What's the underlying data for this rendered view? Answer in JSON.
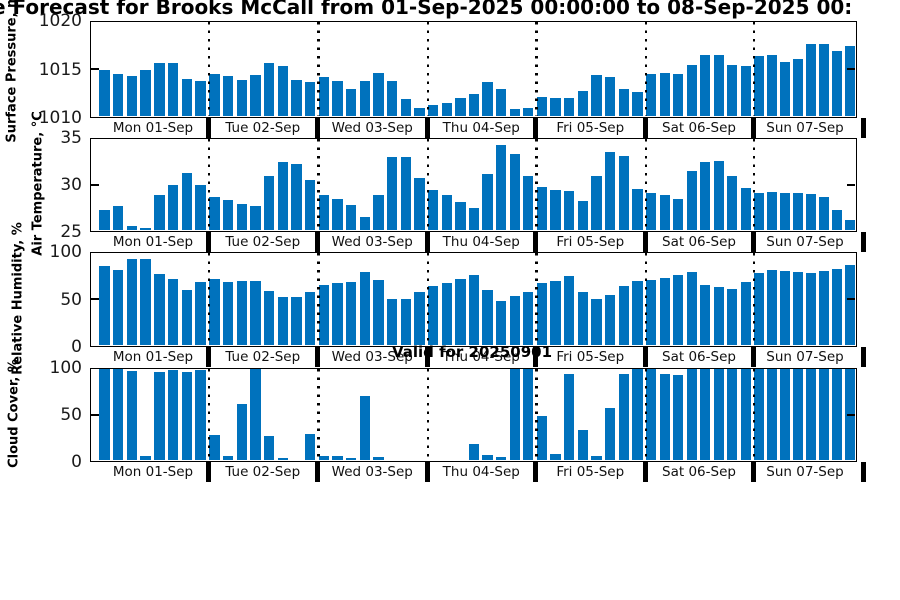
{
  "title": "e Forecast for Brooks McCall from 01-Sep-2025 00:00:00 to 08-Sep-2025 00:",
  "annotation": "Valid for 20250901",
  "bar_color": "#0072BD",
  "day_labels": [
    "Mon 01-Sep",
    "Tue 02-Sep",
    "Wed 03-Sep",
    "Thu 04-Sep",
    "Fri 05-Sep",
    "Sat 06-Sep",
    "Sun 07-Sep"
  ],
  "chart_data": [
    {
      "type": "bar",
      "title": "",
      "ylabel": "Surface Pressure, m",
      "ylim": [
        1010,
        1020
      ],
      "yticks": [
        1010,
        1015,
        1020
      ],
      "grid": "vertical-dotted-day-boundaries",
      "categories": [
        "Mon 01-Sep",
        "Tue 02-Sep",
        "Wed 03-Sep",
        "Thu 04-Sep",
        "Fri 05-Sep",
        "Sat 06-Sep",
        "Sun 07-Sep"
      ],
      "slots_per_day": 8,
      "values_by_day": [
        [
          1014.9,
          1014.5,
          1014.3,
          1014.9,
          1015.6,
          1015.6,
          1013.9,
          1013.7
        ],
        [
          1014.5,
          1014.3,
          1013.8,
          1014.4,
          1015.6,
          1015.3,
          1013.8,
          1013.6
        ],
        [
          1014.2,
          1013.7,
          1012.9,
          1013.7,
          1014.6,
          1013.7,
          1011.8,
          1010.9
        ],
        [
          1011.2,
          1011.4,
          1011.9,
          1012.3,
          1013.6,
          1012.9,
          1010.7,
          1010.9
        ],
        [
          1012.0,
          1011.9,
          1011.9,
          1012.7,
          1014.4,
          1014.1,
          1012.9,
          1012.6
        ],
        [
          1014.5,
          1014.6,
          1014.5,
          1015.4,
          1016.5,
          1016.5,
          1015.4,
          1015.3
        ],
        [
          1016.4,
          1016.5,
          1015.7,
          1016.1,
          1017.7,
          1017.7,
          1016.9,
          1017.5
        ]
      ]
    },
    {
      "type": "bar",
      "title": "",
      "ylabel": "Air Temperature, °C",
      "ylim": [
        25,
        35
      ],
      "yticks": [
        25,
        30,
        35
      ],
      "grid": "vertical-dotted-day-boundaries",
      "categories": [
        "Mon 01-Sep",
        "Tue 02-Sep",
        "Wed 03-Sep",
        "Thu 04-Sep",
        "Fri 05-Sep",
        "Sat 06-Sep",
        "Sun 07-Sep"
      ],
      "slots_per_day": 8,
      "values_by_day": [
        [
          27.2,
          27.6,
          25.4,
          25.2,
          28.8,
          29.9,
          31.3,
          29.9
        ],
        [
          28.6,
          28.3,
          27.9,
          27.6,
          30.9,
          32.5,
          32.3,
          30.5
        ],
        [
          28.9,
          28.4,
          27.8,
          26.4,
          28.9,
          33.0,
          33.0,
          30.7
        ],
        [
          29.4,
          28.9,
          28.1,
          27.4,
          31.2,
          34.3,
          33.4,
          30.9
        ],
        [
          29.7,
          29.4,
          29.3,
          28.2,
          30.9,
          33.6,
          33.1,
          29.5
        ],
        [
          29.1,
          28.9,
          28.4,
          31.5,
          32.5,
          32.6,
          30.9,
          29.6
        ],
        [
          29.1,
          29.2,
          29.1,
          29.1,
          29.0,
          28.6,
          27.2,
          26.1
        ]
      ]
    },
    {
      "type": "bar",
      "title": "",
      "ylabel": "Relative Humidity, %",
      "ylim": [
        0,
        100
      ],
      "yticks": [
        0,
        50,
        100
      ],
      "grid": "vertical-dotted-day-boundaries",
      "categories": [
        "Mon 01-Sep",
        "Tue 02-Sep",
        "Wed 03-Sep",
        "Thu 04-Sep",
        "Fri 05-Sep",
        "Sat 06-Sep",
        "Sun 07-Sep"
      ],
      "slots_per_day": 8,
      "values_by_day": [
        [
          86,
          81,
          93,
          93,
          77,
          72,
          60,
          68
        ],
        [
          72,
          68,
          70,
          70,
          59,
          52,
          52,
          58
        ],
        [
          65,
          67,
          69,
          79,
          71,
          50,
          50,
          58
        ],
        [
          64,
          67,
          72,
          76,
          60,
          48,
          53,
          58
        ],
        [
          67,
          70,
          75,
          58,
          50,
          54,
          64,
          70
        ],
        [
          71,
          73,
          76,
          79,
          65,
          63,
          61,
          68
        ],
        [
          78,
          81,
          80,
          79,
          78,
          80,
          83,
          87
        ]
      ]
    },
    {
      "type": "bar",
      "title": "",
      "ylabel": "Cloud Cover, %",
      "ylim": [
        0,
        100
      ],
      "yticks": [
        0,
        50,
        100
      ],
      "grid": "vertical-dotted-day-boundaries",
      "categories": [
        "Mon 01-Sep",
        "Tue 02-Sep",
        "Wed 03-Sep",
        "Thu 04-Sep",
        "Fri 05-Sep",
        "Sat 06-Sep",
        "Sun 07-Sep"
      ],
      "slots_per_day": 8,
      "values_by_day": [
        [
          100,
          100,
          98,
          4,
          97,
          99,
          97,
          99
        ],
        [
          27,
          4,
          61,
          100,
          26,
          2,
          0,
          29
        ],
        [
          4,
          4,
          2,
          70,
          3,
          0,
          0,
          0
        ],
        [
          0,
          0,
          0,
          18,
          5,
          3,
          100,
          100
        ],
        [
          48,
          7,
          95,
          33,
          4,
          57,
          95,
          100
        ],
        [
          100,
          95,
          93,
          100,
          100,
          100,
          100,
          100
        ],
        [
          100,
          100,
          100,
          100,
          100,
          100,
          100,
          100
        ]
      ]
    }
  ]
}
